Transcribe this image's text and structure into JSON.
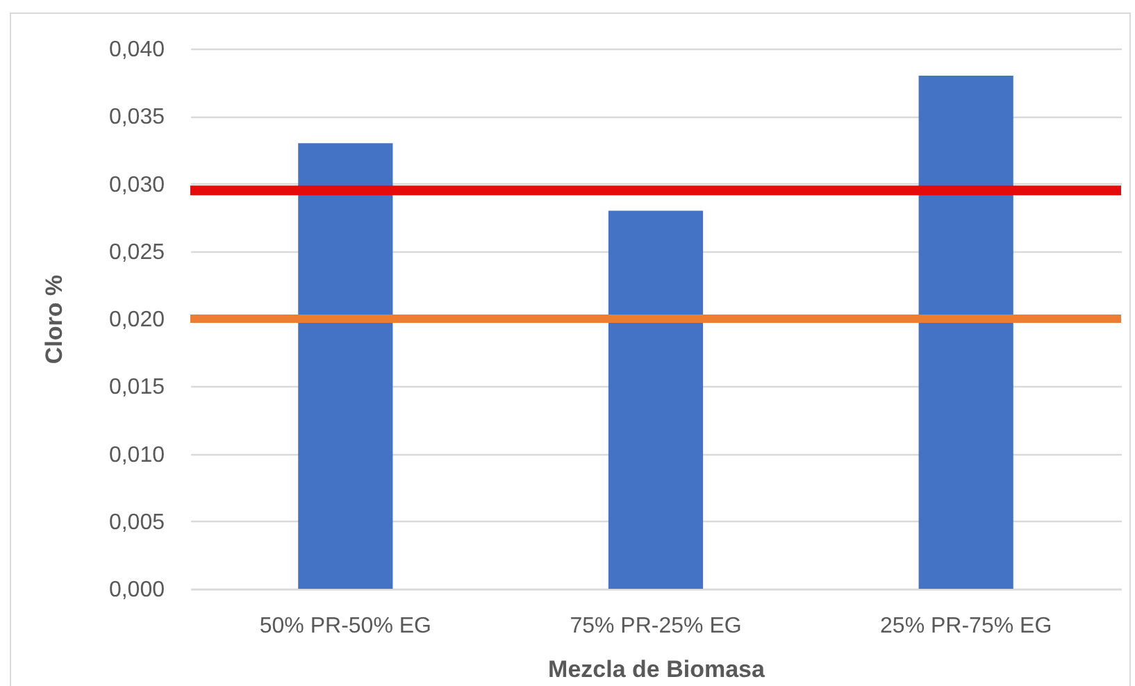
{
  "chart_data": {
    "type": "bar",
    "categories": [
      "50% PR-50% EG",
      "75% PR-25% EG",
      "25% PR-75% EG"
    ],
    "values": [
      0.033,
      0.028,
      0.038
    ],
    "color": "#4472c4",
    "xlabel": "Mezcla de Biomasa",
    "ylabel": "Cloro %",
    "ylim": [
      0,
      0.04
    ],
    "yticks": [
      {
        "value": 0,
        "label": "0,000"
      },
      {
        "value": 0.005,
        "label": "0,005"
      },
      {
        "value": 0.01,
        "label": "0,010"
      },
      {
        "value": 0.015,
        "label": "0,015"
      },
      {
        "value": 0.02,
        "label": "0,020"
      },
      {
        "value": 0.025,
        "label": "0,025"
      },
      {
        "value": 0.03,
        "label": "0,030"
      },
      {
        "value": 0.035,
        "label": "0,035"
      },
      {
        "value": 0.04,
        "label": "0,040"
      }
    ],
    "grid": "y",
    "ref_lines": [
      {
        "axis": "y",
        "value": 0.0295,
        "color": "#e60b0b"
      },
      {
        "axis": "y",
        "value": 0.02,
        "color": "#ed7d31"
      }
    ]
  }
}
